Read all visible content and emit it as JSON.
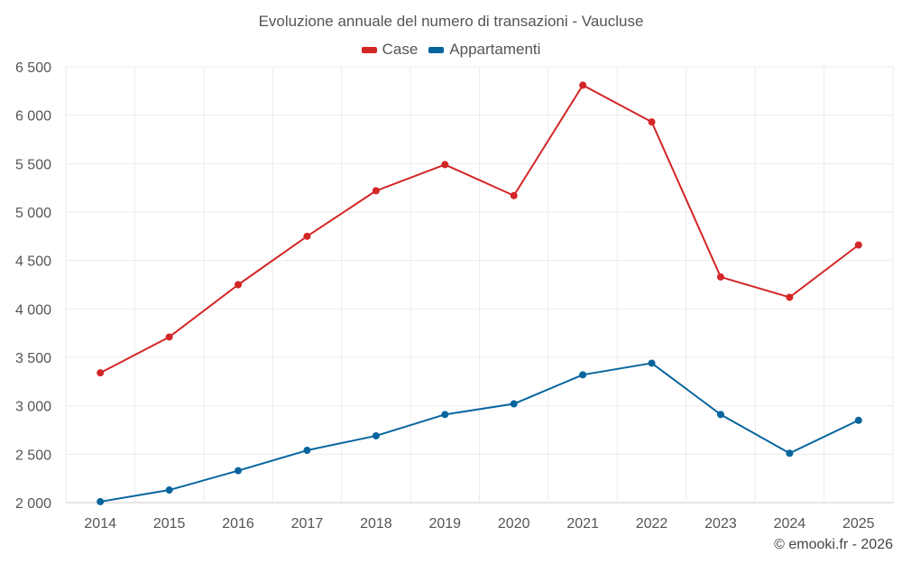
{
  "chart_data": {
    "type": "line",
    "title": "Evoluzione annuale del numero di transazioni - Vaucluse",
    "xlabel": "",
    "ylabel": "",
    "categories": [
      "2014",
      "2015",
      "2016",
      "2017",
      "2018",
      "2019",
      "2020",
      "2021",
      "2022",
      "2023",
      "2024",
      "2025"
    ],
    "series": [
      {
        "name": "Case",
        "color": "#d32626",
        "values": [
          3340,
          3710,
          4250,
          4750,
          5220,
          5490,
          5170,
          6310,
          5930,
          4330,
          4120,
          4660
        ]
      },
      {
        "name": "Appartamenti",
        "color": "#07659e",
        "values": [
          2010,
          2130,
          2330,
          2540,
          2690,
          2910,
          3020,
          3320,
          3440,
          2910,
          2510,
          2850
        ]
      }
    ],
    "ylim": [
      2000,
      6500
    ],
    "yticks": [
      2000,
      2500,
      3000,
      3500,
      4000,
      4500,
      5000,
      5500,
      6000,
      6500
    ],
    "ytick_labels": [
      "2 000",
      "2 500",
      "3 000",
      "3 500",
      "4 000",
      "4 500",
      "5 000",
      "5 500",
      "6 000",
      "6 500"
    ],
    "grid": true,
    "legend_position": "top-center"
  },
  "footer": {
    "credit": "© emooki.fr - 2026"
  }
}
